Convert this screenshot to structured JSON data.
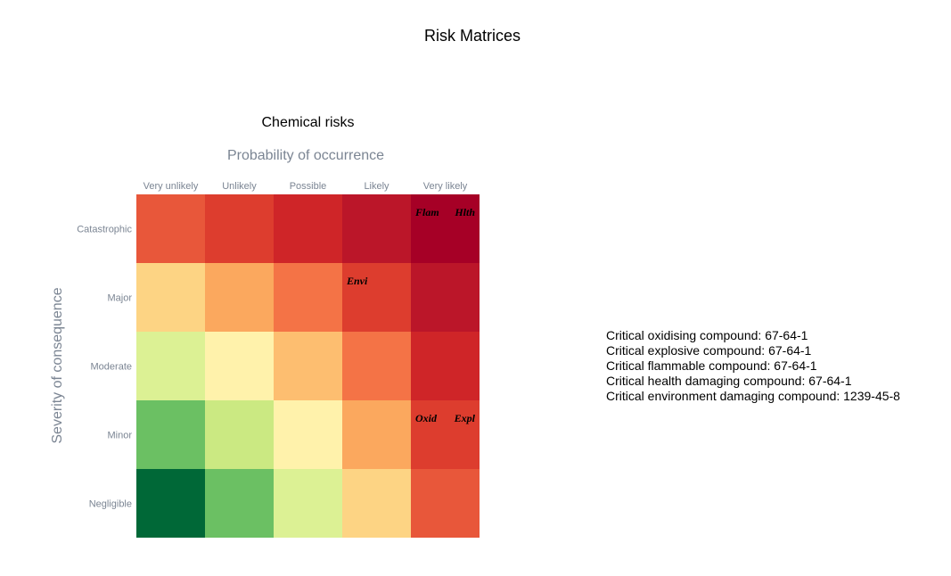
{
  "title": "Risk Matrices",
  "chart_data": {
    "type": "heatmap",
    "title": "Chemical risks",
    "xlabel": "Probability of occurrence",
    "ylabel": "Severity of consequence",
    "x_categories": [
      "Very unlikely",
      "Unlikely",
      "Possible",
      "Likely",
      "Very likely"
    ],
    "y_categories": [
      "Catastrophic",
      "Major",
      "Moderate",
      "Minor",
      "Negligible"
    ],
    "cells": [
      [
        "#e8573a",
        "#dd3d2e",
        "#cf2528",
        "#bb1629",
        "#a60026"
      ],
      [
        "#fdd484",
        "#fba85e",
        "#f47346",
        "#dd3d2e",
        "#bb1629"
      ],
      [
        "#dcf194",
        "#fff2ab",
        "#fdbe70",
        "#f47346",
        "#cf2528"
      ],
      [
        "#6bc063",
        "#cbe982",
        "#fff2ab",
        "#fba85e",
        "#dd3d2e"
      ],
      [
        "#006837",
        "#6bc063",
        "#dcf194",
        "#fdd484",
        "#e8573a"
      ]
    ],
    "annotations": [
      {
        "text": "Flam",
        "col": 4,
        "row": 0,
        "slot": "left"
      },
      {
        "text": "Hlth",
        "col": 4,
        "row": 0,
        "slot": "right"
      },
      {
        "text": "Envi",
        "col": 3,
        "row": 1,
        "slot": "left"
      },
      {
        "text": "Oxid",
        "col": 4,
        "row": 3,
        "slot": "left"
      },
      {
        "text": "Expl",
        "col": 4,
        "row": 3,
        "slot": "right"
      }
    ]
  },
  "notes": [
    "Critical oxidising compound: 67-64-1",
    "Critical explosive compound: 67-64-1",
    "Critical flammable compound: 67-64-1",
    "Critical health damaging compound: 67-64-1",
    "Critical environment damaging compound: 1239-45-8"
  ]
}
